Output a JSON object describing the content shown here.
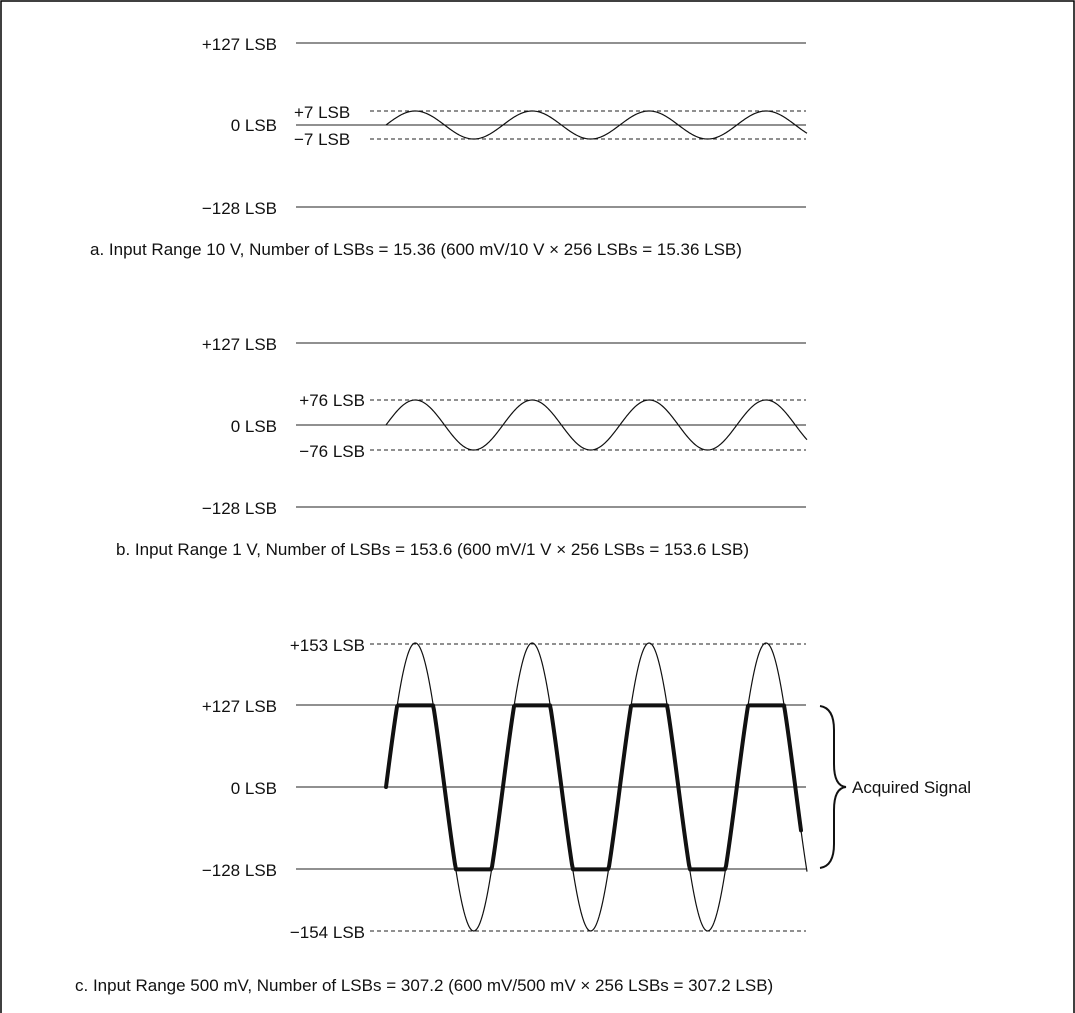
{
  "panels": [
    {
      "id": "a",
      "labels": {
        "top": "+127 LSB",
        "mid": "0 LSB",
        "upper_amp": "+7 LSB",
        "lower_amp": "−7 LSB",
        "bottom": "−128 LSB"
      },
      "caption": "a. Input Range 10 V, Number of LSBs = 15.36 (600 mV/10 V × 256 LSBs = 15.36 LSB)"
    },
    {
      "id": "b",
      "labels": {
        "top": "+127 LSB",
        "mid": "0 LSB",
        "upper_amp": "+76 LSB",
        "lower_amp": "−76 LSB",
        "bottom": "−128 LSB"
      },
      "caption": "b. Input Range 1 V, Number of LSBs = 153.6 (600 mV/1 V × 256 LSBs = 153.6 LSB)"
    },
    {
      "id": "c",
      "labels": {
        "upper_amp": "+153 LSB",
        "top": "+127 LSB",
        "mid": "0 LSB",
        "bottom": "−128 LSB",
        "lower_amp": "−154 LSB"
      },
      "annotation": "Acquired Signal",
      "caption": "c. Input Range 500 mV, Number of LSBs = 307.2 (600 mV/500 mV × 256 LSBs = 307.2 LSB)"
    }
  ],
  "signal": {
    "cycles": 3.6
  },
  "clip": {
    "max": 127,
    "min": -128
  }
}
